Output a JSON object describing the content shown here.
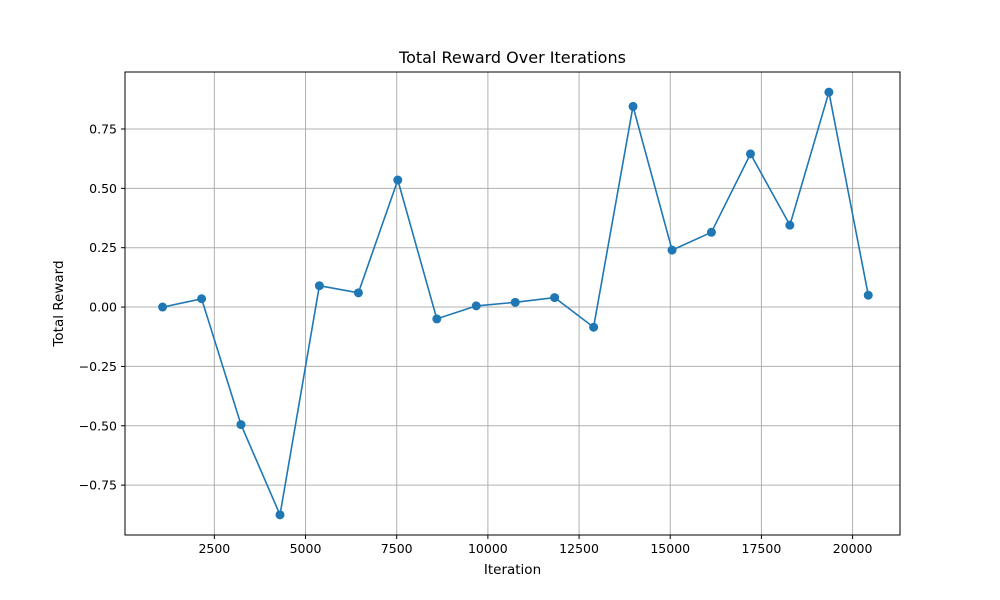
{
  "chart_data": {
    "type": "line",
    "title": "Total Reward Over Iterations",
    "xlabel": "Iteration",
    "ylabel": "Total Reward",
    "xlim": [
      50,
      21300
    ],
    "ylim": [
      -0.96,
      0.99
    ],
    "grid": true,
    "legend": "none",
    "x_ticks": [
      2500,
      5000,
      7500,
      10000,
      12500,
      15000,
      17500,
      20000
    ],
    "x_tick_labels": [
      "2500",
      "5000",
      "7500",
      "10000",
      "12500",
      "15000",
      "17500",
      "20000"
    ],
    "y_ticks": [
      -0.75,
      -0.5,
      -0.25,
      0.0,
      0.25,
      0.5,
      0.75
    ],
    "y_tick_labels": [
      "−0.75",
      "−0.50",
      "−0.25",
      "0.00",
      "0.25",
      "0.50",
      "0.75"
    ],
    "series": [
      {
        "color": "#1f77b4",
        "marker": "circle",
        "x": [
          1080,
          2150,
          3230,
          4300,
          5380,
          6450,
          7530,
          8600,
          9680,
          10750,
          11830,
          12900,
          13980,
          15050,
          16130,
          17200,
          18280,
          19350,
          20430
        ],
        "y": [
          0.0,
          0.035,
          -0.495,
          -0.875,
          0.09,
          0.06,
          0.535,
          -0.05,
          0.005,
          0.02,
          0.04,
          -0.085,
          0.845,
          0.24,
          0.315,
          0.645,
          0.345,
          0.905,
          0.05
        ]
      }
    ]
  }
}
